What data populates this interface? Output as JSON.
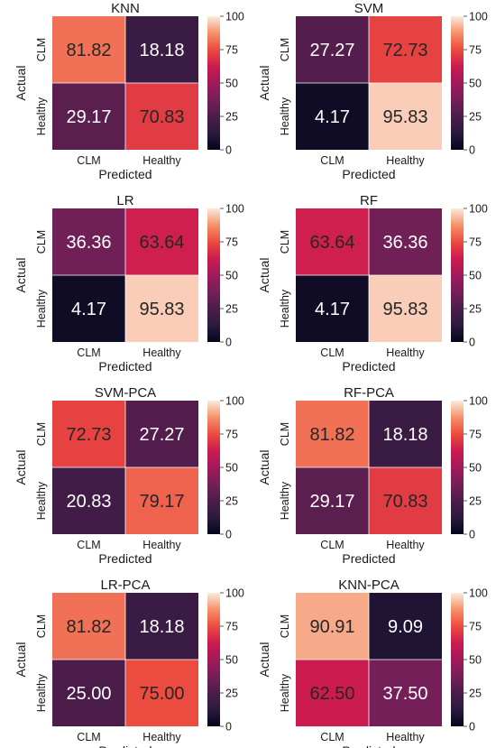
{
  "chart_data": [
    {
      "type": "heatmap",
      "title": "KNN",
      "xlabel": "Predicted",
      "ylabel": "Actual",
      "x_categories": [
        "CLM",
        "Healthy"
      ],
      "y_categories": [
        "CLM",
        "Healthy"
      ],
      "values": [
        [
          81.82,
          18.18
        ],
        [
          29.17,
          70.83
        ]
      ],
      "labels": [
        [
          "81.82",
          "18.18"
        ],
        [
          "29.17",
          "70.83"
        ]
      ],
      "colorbar": {
        "range": [
          0,
          100
        ],
        "ticks": [
          "0",
          "25",
          "50",
          "75",
          "100"
        ]
      }
    },
    {
      "type": "heatmap",
      "title": "SVM",
      "xlabel": "Predicted",
      "ylabel": "Actual",
      "x_categories": [
        "CLM",
        "Healthy"
      ],
      "y_categories": [
        "CLM",
        "Healthy"
      ],
      "values": [
        [
          27.27,
          72.73
        ],
        [
          4.17,
          95.83
        ]
      ],
      "labels": [
        [
          "27.27",
          "72.73"
        ],
        [
          "4.17",
          "95.83"
        ]
      ],
      "colorbar": {
        "range": [
          0,
          100
        ],
        "ticks": [
          "0",
          "25",
          "50",
          "75",
          "100"
        ]
      }
    },
    {
      "type": "heatmap",
      "title": "LR",
      "xlabel": "Predicted",
      "ylabel": "Actual",
      "x_categories": [
        "CLM",
        "Healthy"
      ],
      "y_categories": [
        "CLM",
        "Healthy"
      ],
      "values": [
        [
          36.36,
          63.64
        ],
        [
          4.17,
          95.83
        ]
      ],
      "labels": [
        [
          "36.36",
          "63.64"
        ],
        [
          "4.17",
          "95.83"
        ]
      ],
      "colorbar": {
        "range": [
          0,
          100
        ],
        "ticks": [
          "0",
          "25",
          "50",
          "75",
          "100"
        ]
      }
    },
    {
      "type": "heatmap",
      "title": "RF",
      "xlabel": "Predicted",
      "ylabel": "Actual",
      "x_categories": [
        "CLM",
        "Healthy"
      ],
      "y_categories": [
        "CLM",
        "Healthy"
      ],
      "values": [
        [
          63.64,
          36.36
        ],
        [
          4.17,
          95.83
        ]
      ],
      "labels": [
        [
          "63.64",
          "36.36"
        ],
        [
          "4.17",
          "95.83"
        ]
      ],
      "colorbar": {
        "range": [
          0,
          100
        ],
        "ticks": [
          "0",
          "25",
          "50",
          "75",
          "100"
        ]
      }
    },
    {
      "type": "heatmap",
      "title": "SVM-PCA",
      "xlabel": "Predicted",
      "ylabel": "Actual",
      "x_categories": [
        "CLM",
        "Healthy"
      ],
      "y_categories": [
        "CLM",
        "Healthy"
      ],
      "values": [
        [
          72.73,
          27.27
        ],
        [
          20.83,
          79.17
        ]
      ],
      "labels": [
        [
          "72.73",
          "27.27"
        ],
        [
          "20.83",
          "79.17"
        ]
      ],
      "colorbar": {
        "range": [
          0,
          100
        ],
        "ticks": [
          "0",
          "25",
          "50",
          "75",
          "100"
        ]
      }
    },
    {
      "type": "heatmap",
      "title": "RF-PCA",
      "xlabel": "Predicted",
      "ylabel": "Actual",
      "x_categories": [
        "CLM",
        "Healthy"
      ],
      "y_categories": [
        "CLM",
        "Healthy"
      ],
      "values": [
        [
          81.82,
          18.18
        ],
        [
          29.17,
          70.83
        ]
      ],
      "labels": [
        [
          "81.82",
          "18.18"
        ],
        [
          "29.17",
          "70.83"
        ]
      ],
      "colorbar": {
        "range": [
          0,
          100
        ],
        "ticks": [
          "0",
          "25",
          "50",
          "75",
          "100"
        ]
      }
    },
    {
      "type": "heatmap",
      "title": "LR-PCA",
      "xlabel": "Predicted",
      "ylabel": "Actual",
      "x_categories": [
        "CLM",
        "Healthy"
      ],
      "y_categories": [
        "CLM",
        "Healthy"
      ],
      "values": [
        [
          81.82,
          18.18
        ],
        [
          25.0,
          75.0
        ]
      ],
      "labels": [
        [
          "81.82",
          "18.18"
        ],
        [
          "25.00",
          "75.00"
        ]
      ],
      "colorbar": {
        "range": [
          0,
          100
        ],
        "ticks": [
          "0",
          "25",
          "50",
          "75",
          "100"
        ]
      }
    },
    {
      "type": "heatmap",
      "title": "KNN-PCA",
      "xlabel": "Predicted",
      "ylabel": "Actual",
      "x_categories": [
        "CLM",
        "Healthy"
      ],
      "y_categories": [
        "CLM",
        "Healthy"
      ],
      "values": [
        [
          90.91,
          9.09
        ],
        [
          62.5,
          37.5
        ]
      ],
      "labels": [
        [
          "90.91",
          "9.09"
        ],
        [
          "62.50",
          "37.50"
        ]
      ],
      "colorbar": {
        "range": [
          0,
          100
        ],
        "ticks": [
          "0",
          "25",
          "50",
          "75",
          "100"
        ]
      }
    }
  ]
}
